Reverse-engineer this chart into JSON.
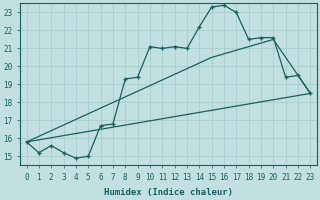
{
  "xlabel": "Humidex (Indice chaleur)",
  "ylabel": "",
  "bg_color": "#c2e0e0",
  "grid_color": "#a8cece",
  "line_color": "#1a6060",
  "xlim": [
    -0.5,
    23.5
  ],
  "ylim": [
    14.5,
    23.5
  ],
  "yticks": [
    15,
    16,
    17,
    18,
    19,
    20,
    21,
    22,
    23
  ],
  "xticks": [
    0,
    1,
    2,
    3,
    4,
    5,
    6,
    7,
    8,
    9,
    10,
    11,
    12,
    13,
    14,
    15,
    16,
    17,
    18,
    19,
    20,
    21,
    22,
    23
  ],
  "main_x": [
    0,
    1,
    2,
    3,
    4,
    5,
    6,
    7,
    8,
    9,
    10,
    11,
    12,
    13,
    14,
    15,
    16,
    17,
    18,
    19,
    20,
    21,
    22,
    23
  ],
  "main_y": [
    15.8,
    15.2,
    15.6,
    15.2,
    14.9,
    15.0,
    16.7,
    16.8,
    19.3,
    19.4,
    21.1,
    21.0,
    21.1,
    21.0,
    22.2,
    23.3,
    23.4,
    23.0,
    21.5,
    21.6,
    21.6,
    19.4,
    19.5,
    18.5
  ],
  "trend1_x": [
    0,
    23
  ],
  "trend1_y": [
    15.8,
    18.5
  ],
  "trend2_x": [
    0,
    15,
    20,
    23
  ],
  "trend2_y": [
    15.8,
    20.5,
    21.5,
    18.5
  ]
}
